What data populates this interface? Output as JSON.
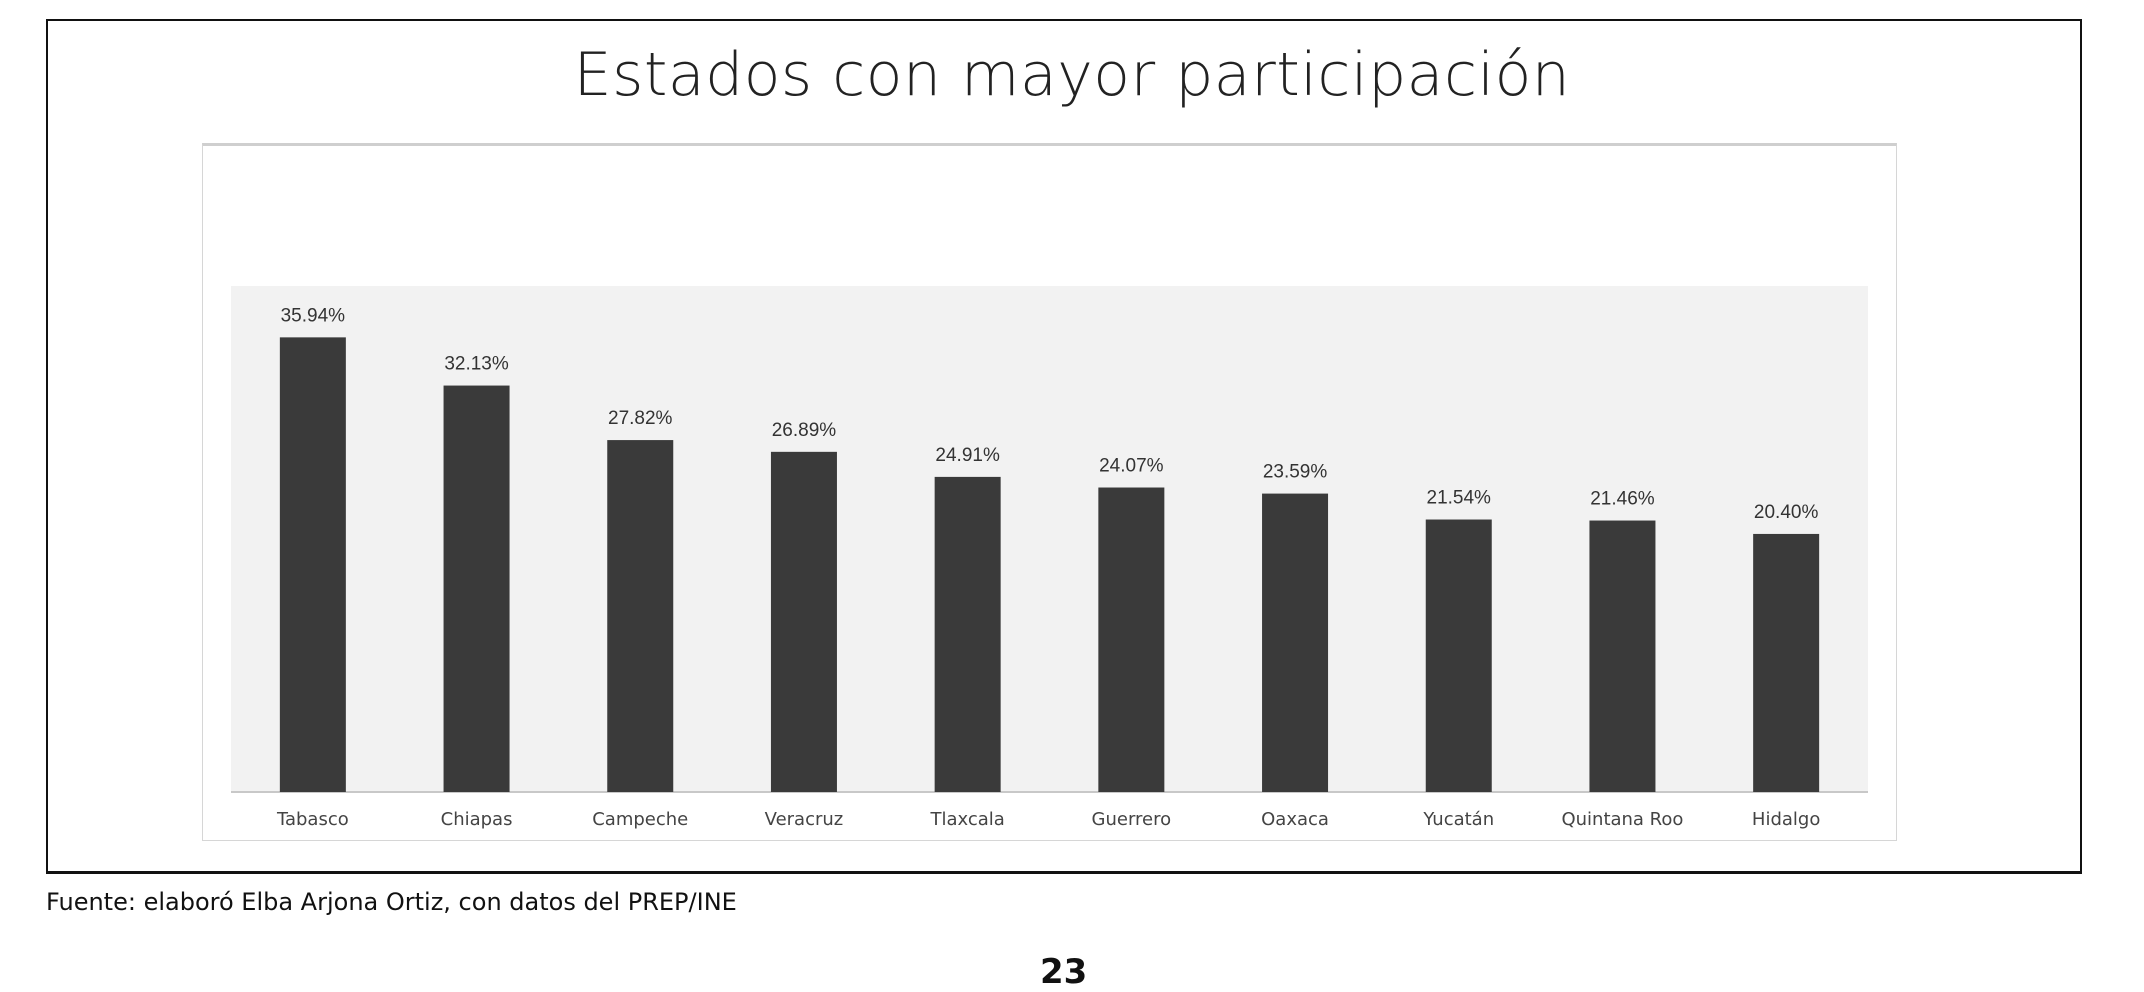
{
  "chart_data": {
    "type": "bar",
    "title": "Estados con mayor participación",
    "xlabel": "",
    "ylabel": "",
    "ylim": [
      0,
      40
    ],
    "grid": false,
    "categories": [
      "Tabasco",
      "Chiapas",
      "Campeche",
      "Veracruz",
      "Tlaxcala",
      "Guerrero",
      "Oaxaca",
      "Yucatán",
      "Quintana Roo",
      "Hidalgo"
    ],
    "values": [
      35.94,
      32.13,
      27.82,
      26.89,
      24.91,
      24.07,
      23.59,
      21.54,
      21.46,
      20.4
    ],
    "data_labels": [
      "35.94%",
      "32.13%",
      "27.82%",
      "26.89%",
      "24.91%",
      "24.07%",
      "23.59%",
      "21.54%",
      "21.46%",
      "20.40%"
    ],
    "bar_color": "#3a3a3a",
    "plot_background": "#f2f2f2"
  },
  "source": "Fuente: elaboró Elba Arjona Ortiz, con datos del PREP/INE",
  "page_number": "23"
}
